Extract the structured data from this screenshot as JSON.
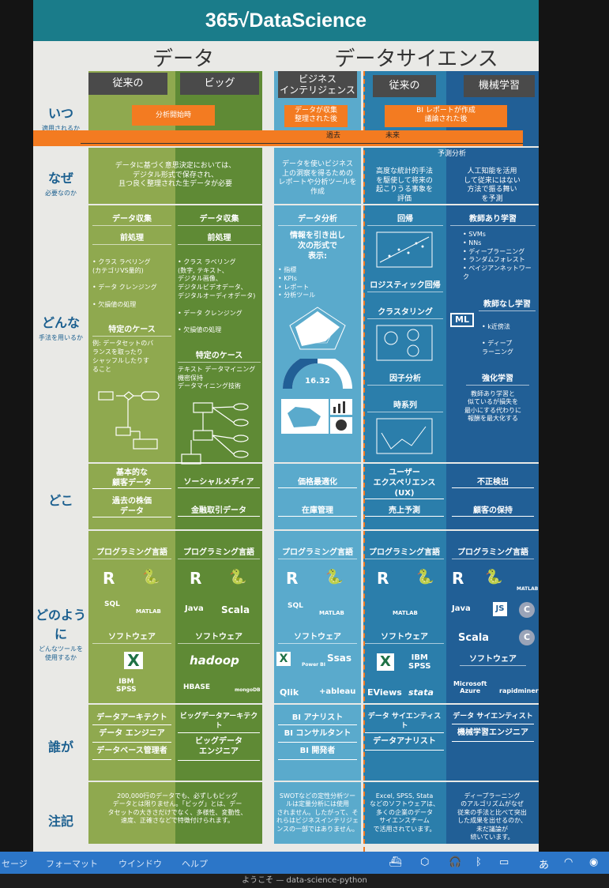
{
  "header": {
    "brand": "365√DataScience",
    "left_heading": "データ",
    "right_heading": "データサイエンス"
  },
  "ribbons": {
    "traditional_1": "従来の",
    "big": "ビッグ",
    "bi": "ビジネス\nインテリジェンス",
    "traditional_2": "従来の",
    "ml": "機械学習"
  },
  "rows": {
    "when": {
      "label": "いつ",
      "sub": "適用されるか"
    },
    "why": {
      "label": "なぜ",
      "sub": "必要なのか"
    },
    "how": {
      "label": "どんな",
      "sub": "手法を用いるか"
    },
    "where": {
      "label": "どこ",
      "sub": ""
    },
    "tools": {
      "label": "どのように",
      "sub": "どんなツールを\n使用するか"
    },
    "who": {
      "label": "誰が",
      "sub": ""
    },
    "notes": {
      "label": "注記",
      "sub": ""
    }
  },
  "when": {
    "start": "分析開始時",
    "bi": "データが収集\n整理された後",
    "ds": "BI レポートが作成\n議論された後",
    "past": "過去",
    "future": "未来",
    "predictive": "予測分析"
  },
  "why": {
    "data": "データに基づく意思決定においては、\nデジタル形式で保存され、\n且つ良く整理された生データが必要",
    "bi": "データを使いビジネス\n上の洞察を得るための\nレポートや分析ツールを\n作成",
    "trad": "高度な統計的手法\nを駆使して将来の\n起こりうる事象を\n評価",
    "ml": "人工知能を活用\nして従来にはない\n方法で振る舞い\nを予測"
  },
  "how": {
    "c1": {
      "h1": "データ収集",
      "h2": "前処理",
      "items": [
        "クラス ラベリング\n(カテゴリVS量的)",
        "データ クレンジング",
        "欠損値の処理"
      ],
      "h3": "特定のケース",
      "case": "例: データセットのバ\nランスを取ったり\nシャッフルしたりす\nること"
    },
    "c2": {
      "h1": "データ収集",
      "h2": "前処理",
      "items": [
        "クラス ラベリング\n(数字, テキスト、\nデジタル画像、\nデジタルビデオデータ、\nデジタルオーディオデータ)",
        "データ クレンジング",
        "欠損値の処理"
      ],
      "h3": "特定のケース",
      "case": "テキスト データマイニング\n機密保持\nデータマイニング技術"
    },
    "c3": {
      "h1": "データ分析",
      "intro": "情報を引き出し\n次の形式で\n表示:",
      "items": [
        "指標",
        "KPIs",
        "レポート",
        "分析ツール"
      ],
      "gauge": "16.32"
    },
    "c4": {
      "h1": "回帰",
      "h2": "ロジスティック回帰",
      "h3": "クラスタリング",
      "h4": "因子分析",
      "h5": "時系列"
    },
    "c5": {
      "h1": "教師あり学習",
      "items": [
        "SVMs",
        "NNs",
        "ディープラーニング",
        "ランダムフォレスト",
        "ベイジアンネットワーク"
      ],
      "ml": "ML",
      "h2": "教師なし学習",
      "items2": [
        "k近傍法",
        "ディープ\nラーニング"
      ],
      "h3": "強化学習",
      "desc": "教師あり学習と\n似ているが損失を\n最小にする代わりに\n報酬を最大化する"
    }
  },
  "where": {
    "c1a": "基本的な\n顧客データ",
    "c1b": "過去の株価\nデータ",
    "c2a": "ソーシャルメディア",
    "c2b": "金融取引データ",
    "c3a": "価格最適化",
    "c3b": "在庫管理",
    "c4a": "ユーザー\nエクスペリエンス (UX)",
    "c4b": "売上予測",
    "c5a": "不正検出",
    "c5b": "顧客の保持"
  },
  "tools": {
    "prog": "プログラミング言語",
    "soft": "ソフトウェア",
    "logos": {
      "r": "R",
      "sql": "SQL",
      "matlab": "MATLAB",
      "java": "Java",
      "scala": "Scala",
      "hadoop": "hadoop",
      "hbase": "HBASE",
      "mongo": "mongoDB",
      "powerbi": "Power BI",
      "sas": "Ssas",
      "qlik": "Qlik",
      "tableau": "+ableau",
      "ibm": "IBM\nSPSS",
      "eviews": "EViews",
      "stata": "stata",
      "js": "JS",
      "c": "C",
      "azure": "Microsoft\nAzure",
      "rapid": "rapidminer"
    }
  },
  "who": {
    "c1": [
      "データアーキテクト",
      "データ エンジニア",
      "データベース管理者"
    ],
    "c2": [
      "ビッグデータアーキテクト",
      "ビッグデータ\nエンジニア"
    ],
    "c3": [
      "BI アナリスト",
      "BI コンサルタント",
      "BI 開発者"
    ],
    "c4": [
      "データ サイエンティスト",
      "データアナリスト"
    ],
    "c5": [
      "データ サイエンティスト",
      "機械学習エンジニア"
    ]
  },
  "notes": {
    "data": "200,000行のデータでも、必ずしもビッグ\nデータとは限りません。「ビッグ」とは、デー\nタセットの大きさだけでなく、多様性、変動性、\n速度、正確さなどで特徴付けられます。",
    "bi": "SWOTなどの定性分析ツー\nルは定量分析には使用\nされません。したがって、そ\nれらはビジネスインテリジェ\nンスの一部ではありません。",
    "trad": "Excel, SPSS, Stata\nなどのソフトウェアは、\n多くの企業のデータ\nサイエンスチーム\nで活用されています。",
    "ml": "ディープラーニング\nのアルゴリズムがなぜ\n従来の手法と比べて突出\nした成果を出せるのか、\n未だ議論が\n続いています。"
  },
  "menubar": {
    "items": [
      "セージ",
      "フォーマット",
      "ウインドウ",
      "ヘルプ"
    ]
  },
  "status": {
    "title": "ようこそ — data-science-python"
  },
  "colors": {
    "teal": "#1a7c8a",
    "olive": "#8fa94f",
    "green": "#5f8a35",
    "lightblue": "#5aaacc",
    "blue": "#2b7eab",
    "navy": "#215f96",
    "orange": "#f37b21"
  }
}
